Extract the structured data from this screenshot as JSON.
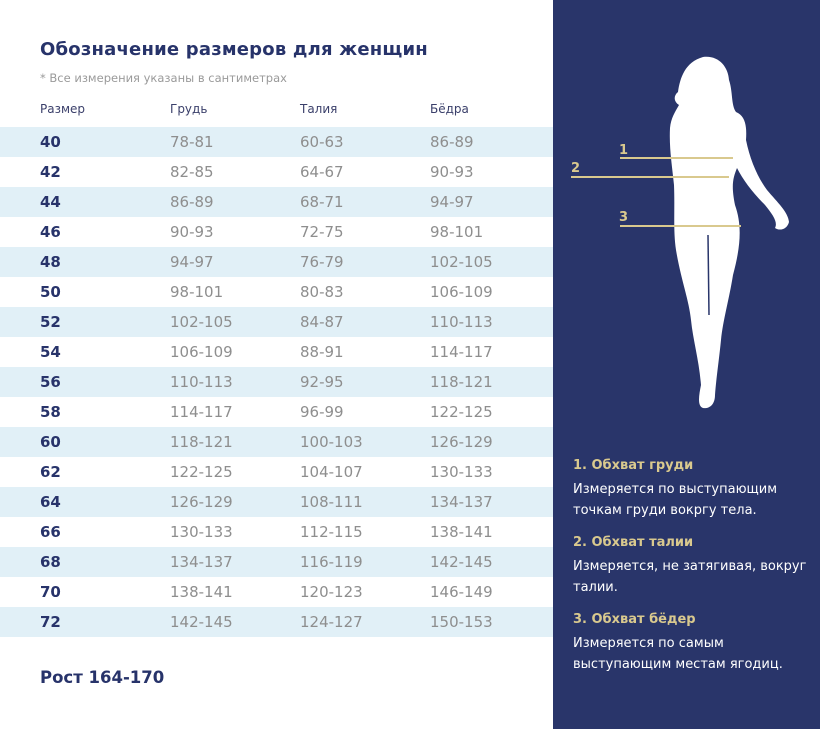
{
  "title": "Обозначение размеров для женщин",
  "note": "* Все измерения указаны в сантиметрах",
  "columns": [
    "Размер",
    "Грудь",
    "Талия",
    "Бёдра"
  ],
  "rows": [
    [
      "40",
      "78-81",
      "60-63",
      "86-89"
    ],
    [
      "42",
      "82-85",
      "64-67",
      "90-93"
    ],
    [
      "44",
      "86-89",
      "68-71",
      "94-97"
    ],
    [
      "46",
      "90-93",
      "72-75",
      "98-101"
    ],
    [
      "48",
      "94-97",
      "76-79",
      "102-105"
    ],
    [
      "50",
      "98-101",
      "80-83",
      "106-109"
    ],
    [
      "52",
      "102-105",
      "84-87",
      "110-113"
    ],
    [
      "54",
      "106-109",
      "88-91",
      "114-117"
    ],
    [
      "56",
      "110-113",
      "92-95",
      "118-121"
    ],
    [
      "58",
      "114-117",
      "96-99",
      "122-125"
    ],
    [
      "60",
      "118-121",
      "100-103",
      "126-129"
    ],
    [
      "62",
      "122-125",
      "104-107",
      "130-133"
    ],
    [
      "64",
      "126-129",
      "108-111",
      "134-137"
    ],
    [
      "66",
      "130-133",
      "112-115",
      "138-141"
    ],
    [
      "68",
      "134-137",
      "116-119",
      "142-145"
    ],
    [
      "70",
      "138-141",
      "120-123",
      "146-149"
    ],
    [
      "72",
      "142-145",
      "124-127",
      "150-153"
    ]
  ],
  "height_label": "Рост 164-170",
  "figure": {
    "markers": [
      "1",
      "2",
      "3"
    ]
  },
  "measurements": [
    {
      "title": "1. Обхват груди",
      "text": "Измеряется по  выступающим точкам груди вокргу тела."
    },
    {
      "title": "2. Обхват талии",
      "text": "Измеряется, не затягивая, вокруг талии."
    },
    {
      "title": "3. Обхват бёдер",
      "text": "Измеряется по самым выступающим местам ягодиц."
    }
  ],
  "colors": {
    "navy": "#29356a",
    "accent": "#d9c98e",
    "row_highlight": "#e1f0f7"
  }
}
